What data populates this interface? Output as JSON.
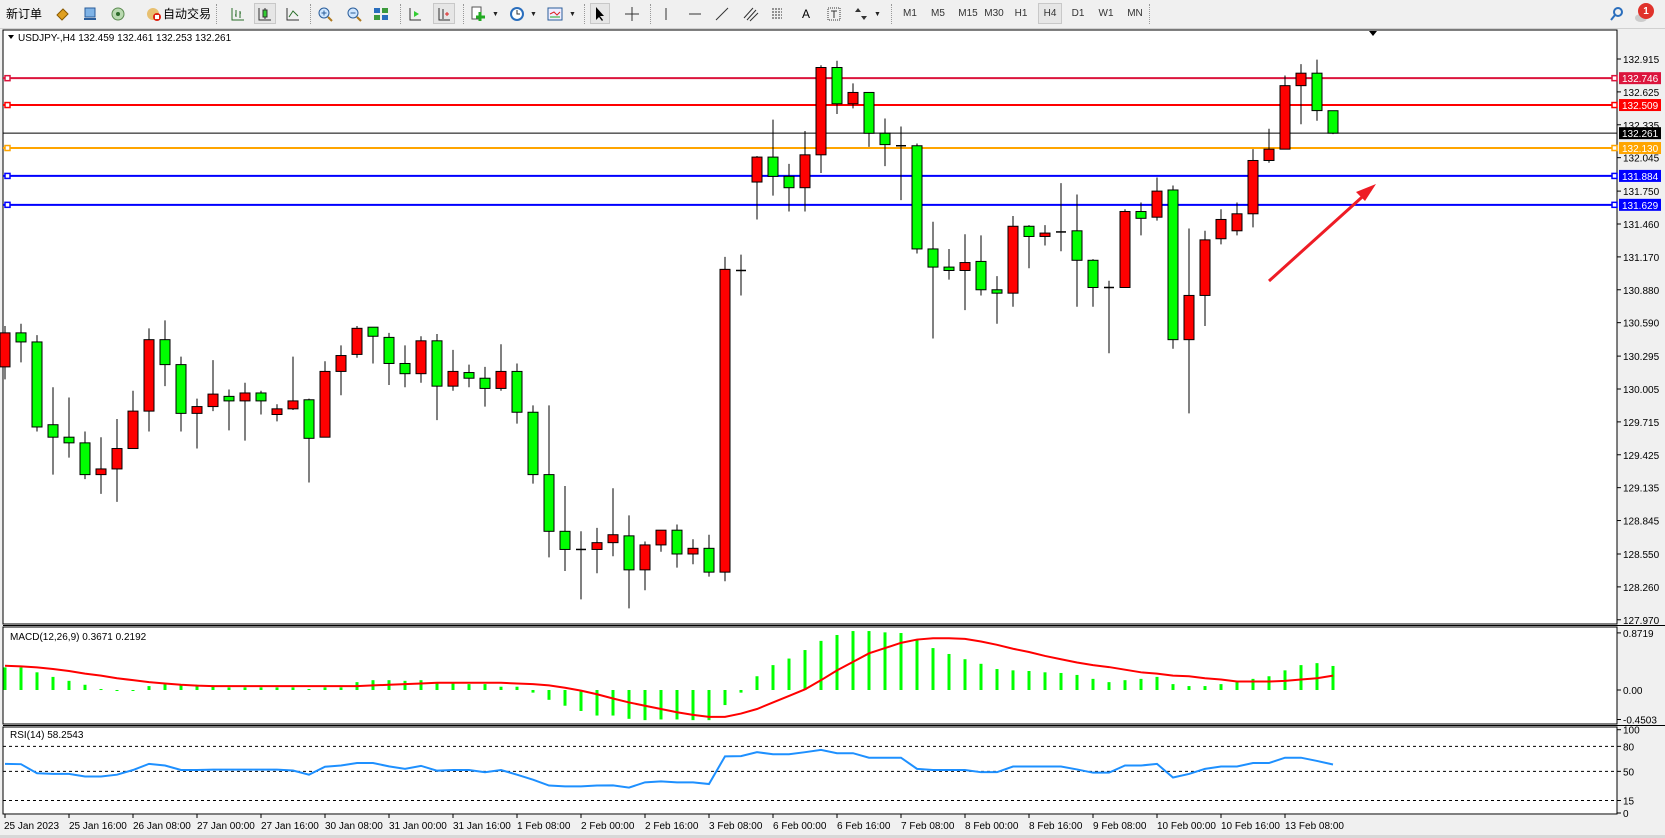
{
  "toolbar": {
    "new_order_label": "新订单",
    "auto_trading_label": "自动交易",
    "timeframes": [
      "M1",
      "M5",
      "M15",
      "M30",
      "H1",
      "H4",
      "D1",
      "W1",
      "MN"
    ],
    "active_timeframe": "H4",
    "notification_count": "1"
  },
  "chart": {
    "header": "USDJPY-,H4  132.459 132.461 132.253 132.261",
    "macd_label": "MACD(12,26,9) 0.3671 0.2192",
    "rsi_label": "RSI(14) 58.2543",
    "colors": {
      "up": "#ff0000",
      "down": "#00ff00",
      "macd_hist": "#00ff00",
      "macd_signal": "#ff0000",
      "rsi": "#1e90ff",
      "arrow": "#ee1c25"
    }
  },
  "chart_data": {
    "type": "candlestick",
    "symbol": "USDJPY-",
    "timeframe": "H4",
    "price_ticks": [
      "132.915",
      "132.625",
      "132.335",
      "132.045",
      "131.750",
      "131.460",
      "131.170",
      "130.880",
      "130.590",
      "130.295",
      "130.005",
      "129.715",
      "129.425",
      "129.135",
      "128.845",
      "128.550",
      "128.260",
      "127.970"
    ],
    "ylim": [
      127.97,
      132.915
    ],
    "time_labels": [
      "25 Jan 2023",
      "25 Jan 16:00",
      "26 Jan 08:00",
      "27 Jan 00:00",
      "27 Jan 16:00",
      "30 Jan 08:00",
      "31 Jan 00:00",
      "31 Jan 16:00",
      "1 Feb 08:00",
      "2 Feb 00:00",
      "2 Feb 16:00",
      "3 Feb 08:00",
      "6 Feb 00:00",
      "6 Feb 16:00",
      "7 Feb 08:00",
      "8 Feb 00:00",
      "8 Feb 16:00",
      "9 Feb 08:00",
      "10 Feb 00:00",
      "10 Feb 16:00",
      "13 Feb 08:00"
    ],
    "bars_per_time_label": 4,
    "ohlc": [
      [
        130.2,
        130.56,
        130.09,
        130.5
      ],
      [
        130.5,
        130.58,
        130.24,
        130.42
      ],
      [
        130.42,
        130.48,
        129.63,
        129.67
      ],
      [
        129.69,
        130.02,
        129.25,
        129.58
      ],
      [
        129.58,
        129.93,
        129.4,
        129.53
      ],
      [
        129.53,
        129.63,
        129.21,
        129.25
      ],
      [
        129.25,
        129.58,
        129.08,
        129.3
      ],
      [
        129.3,
        129.74,
        129.01,
        129.48
      ],
      [
        129.48,
        129.99,
        129.48,
        129.81
      ],
      [
        129.81,
        130.54,
        129.63,
        130.44
      ],
      [
        130.44,
        130.61,
        130.03,
        130.22
      ],
      [
        130.22,
        130.29,
        129.63,
        129.79
      ],
      [
        129.79,
        129.92,
        129.48,
        129.85
      ],
      [
        129.85,
        130.26,
        129.81,
        129.96
      ],
      [
        129.94,
        130.0,
        129.64,
        129.9
      ],
      [
        129.9,
        130.06,
        129.55,
        129.97
      ],
      [
        129.97,
        129.99,
        129.78,
        129.9
      ],
      [
        129.78,
        129.87,
        129.72,
        129.83
      ],
      [
        129.83,
        130.29,
        129.82,
        129.9
      ],
      [
        129.91,
        129.92,
        129.18,
        129.57
      ],
      [
        129.58,
        130.25,
        129.58,
        130.16
      ],
      [
        130.16,
        130.39,
        129.95,
        130.3
      ],
      [
        130.31,
        130.56,
        130.28,
        130.54
      ],
      [
        130.55,
        130.55,
        130.23,
        130.47
      ],
      [
        130.46,
        130.5,
        130.04,
        130.23
      ],
      [
        130.23,
        130.39,
        130.02,
        130.14
      ],
      [
        130.14,
        130.47,
        130.06,
        130.43
      ],
      [
        130.43,
        130.49,
        129.73,
        130.03
      ],
      [
        130.03,
        130.35,
        129.99,
        130.16
      ],
      [
        130.15,
        130.22,
        130.02,
        130.1
      ],
      [
        130.1,
        130.2,
        129.85,
        130.01
      ],
      [
        130.01,
        130.4,
        129.99,
        130.16
      ],
      [
        130.16,
        130.23,
        129.7,
        129.8
      ],
      [
        129.8,
        129.86,
        129.17,
        129.25
      ],
      [
        129.25,
        129.86,
        128.52,
        128.75
      ],
      [
        128.75,
        129.15,
        128.4,
        128.59
      ],
      [
        128.59,
        128.75,
        128.15,
        128.59
      ],
      [
        128.59,
        128.78,
        128.38,
        128.65
      ],
      [
        128.65,
        129.13,
        128.53,
        128.72
      ],
      [
        128.71,
        128.89,
        128.07,
        128.41
      ],
      [
        128.41,
        128.66,
        128.23,
        128.63
      ],
      [
        128.63,
        128.76,
        128.57,
        128.76
      ],
      [
        128.76,
        128.81,
        128.43,
        128.55
      ],
      [
        128.55,
        128.68,
        128.46,
        128.6
      ],
      [
        128.6,
        128.72,
        128.35,
        128.39
      ],
      [
        128.39,
        131.17,
        128.31,
        131.06
      ],
      [
        131.05,
        131.19,
        130.83,
        131.05
      ],
      [
        131.83,
        132.06,
        131.5,
        132.05
      ],
      [
        132.05,
        132.38,
        131.71,
        131.88
      ],
      [
        131.88,
        131.99,
        131.57,
        131.78
      ],
      [
        131.78,
        132.28,
        131.57,
        132.07
      ],
      [
        132.07,
        132.86,
        131.91,
        132.84
      ],
      [
        132.84,
        132.9,
        132.43,
        132.52
      ],
      [
        132.52,
        132.7,
        132.48,
        132.62
      ],
      [
        132.62,
        132.62,
        132.14,
        132.26
      ],
      [
        132.26,
        132.39,
        131.97,
        132.16
      ],
      [
        132.15,
        132.32,
        131.67,
        132.15
      ],
      [
        132.15,
        132.17,
        131.2,
        131.24
      ],
      [
        131.24,
        131.48,
        130.45,
        131.08
      ],
      [
        131.08,
        131.24,
        130.97,
        131.05
      ],
      [
        131.05,
        131.37,
        130.7,
        131.12
      ],
      [
        131.13,
        131.36,
        130.83,
        130.88
      ],
      [
        130.88,
        131.0,
        130.58,
        130.85
      ],
      [
        130.85,
        131.53,
        130.73,
        131.44
      ],
      [
        131.44,
        131.45,
        131.07,
        131.35
      ],
      [
        131.35,
        131.45,
        131.27,
        131.38
      ],
      [
        131.39,
        131.82,
        131.22,
        131.39
      ],
      [
        131.4,
        131.72,
        130.73,
        131.14
      ],
      [
        131.14,
        131.15,
        130.73,
        130.9
      ],
      [
        130.9,
        130.96,
        130.32,
        130.9
      ],
      [
        130.9,
        131.59,
        130.9,
        131.57
      ],
      [
        131.57,
        131.65,
        131.36,
        131.51
      ],
      [
        131.52,
        131.87,
        131.49,
        131.75
      ],
      [
        131.76,
        131.8,
        130.36,
        130.44
      ],
      [
        130.44,
        131.42,
        129.79,
        130.83
      ],
      [
        130.83,
        131.4,
        130.56,
        131.32
      ],
      [
        131.33,
        131.59,
        131.28,
        131.5
      ],
      [
        131.4,
        131.65,
        131.36,
        131.55
      ],
      [
        131.55,
        132.12,
        131.43,
        132.02
      ],
      [
        132.02,
        132.3,
        132.0,
        132.12
      ],
      [
        132.12,
        132.77,
        132.12,
        132.68
      ],
      [
        132.68,
        132.87,
        132.34,
        132.79
      ],
      [
        132.79,
        132.91,
        132.37,
        132.46
      ],
      [
        132.459,
        132.461,
        132.253,
        132.261
      ]
    ],
    "levels": [
      {
        "price": "132.746",
        "color": "#dc143c"
      },
      {
        "price": "132.509",
        "color": "#ff0000"
      },
      {
        "price": "132.130",
        "color": "#ffa500"
      },
      {
        "price": "131.884",
        "color": "#0000ff"
      },
      {
        "price": "131.629",
        "color": "#0000ff"
      }
    ],
    "current_price": {
      "price": "132.261",
      "color": "#000000"
    },
    "macd": {
      "params": "12,26,9",
      "ticks": [
        "0.8719",
        "0.00",
        "-0.4503"
      ],
      "ylim": [
        -0.4503,
        0.8719
      ],
      "histogram": [
        0.345,
        0.345,
        0.27,
        0.2,
        0.14,
        0.08,
        0.015,
        -0.01,
        -0.005,
        0.06,
        0.09,
        0.08,
        0.08,
        0.07,
        0.04,
        0.04,
        0.04,
        0.04,
        0.04,
        0.015,
        0.04,
        0.04,
        0.12,
        0.15,
        0.15,
        0.14,
        0.15,
        0.1,
        0.1,
        0.09,
        0.09,
        0.05,
        0.05,
        -0.04,
        -0.15,
        -0.24,
        -0.32,
        -0.39,
        -0.39,
        -0.44,
        -0.46,
        -0.45,
        -0.45,
        -0.46,
        -0.46,
        -0.23,
        -0.04,
        0.21,
        0.38,
        0.48,
        0.61,
        0.75,
        0.84,
        0.9,
        0.9,
        0.88,
        0.87,
        0.77,
        0.64,
        0.55,
        0.47,
        0.4,
        0.32,
        0.3,
        0.29,
        0.27,
        0.26,
        0.23,
        0.17,
        0.12,
        0.15,
        0.17,
        0.2,
        0.09,
        0.06,
        0.06,
        0.09,
        0.12,
        0.17,
        0.21,
        0.3,
        0.38,
        0.41,
        0.3671
      ],
      "signal": [
        0.37,
        0.36,
        0.345,
        0.32,
        0.29,
        0.25,
        0.22,
        0.18,
        0.15,
        0.12,
        0.1,
        0.08,
        0.066,
        0.06,
        0.06,
        0.06,
        0.06,
        0.06,
        0.06,
        0.06,
        0.06,
        0.06,
        0.06,
        0.07,
        0.08,
        0.09,
        0.1,
        0.11,
        0.11,
        0.11,
        0.11,
        0.11,
        0.1,
        0.09,
        0.07,
        0.035,
        -0.01,
        -0.065,
        -0.13,
        -0.19,
        -0.24,
        -0.29,
        -0.34,
        -0.38,
        -0.41,
        -0.41,
        -0.36,
        -0.29,
        -0.19,
        -0.09,
        0.01,
        0.15,
        0.3,
        0.43,
        0.56,
        0.64,
        0.72,
        0.77,
        0.79,
        0.79,
        0.78,
        0.74,
        0.69,
        0.63,
        0.58,
        0.52,
        0.47,
        0.42,
        0.38,
        0.35,
        0.31,
        0.27,
        0.25,
        0.22,
        0.21,
        0.18,
        0.16,
        0.13,
        0.13,
        0.13,
        0.14,
        0.16,
        0.18,
        0.2192
      ]
    },
    "rsi": {
      "period": 14,
      "ticks": [
        "100",
        "80",
        "50",
        "15",
        "0"
      ],
      "levels": [
        80,
        50,
        15
      ],
      "ylim": [
        0,
        100
      ],
      "values": [
        59,
        58.6,
        47.7,
        47,
        47,
        43.8,
        43.8,
        46,
        51.6,
        59,
        57,
        51.6,
        51.6,
        52,
        52,
        52,
        52,
        52,
        51,
        46,
        55.5,
        57,
        60,
        60,
        56,
        53,
        56.6,
        50.8,
        51.6,
        51.6,
        49,
        51.6,
        46,
        40,
        33,
        32,
        32,
        33,
        33.2,
        30.5,
        36.8,
        38,
        36.8,
        36.8,
        34.8,
        68,
        68.3,
        73,
        70.6,
        70.6,
        73,
        75.7,
        71.8,
        71.8,
        66.4,
        66.4,
        66.4,
        53,
        51.6,
        51.6,
        51.6,
        49,
        49,
        55.8,
        55.8,
        55.8,
        55.8,
        52.3,
        48.4,
        48.4,
        57,
        57,
        59,
        42.6,
        46.9,
        53,
        55.8,
        55.8,
        60,
        60,
        66.4,
        66.4,
        62.5,
        58.2543
      ]
    },
    "grid": false
  }
}
